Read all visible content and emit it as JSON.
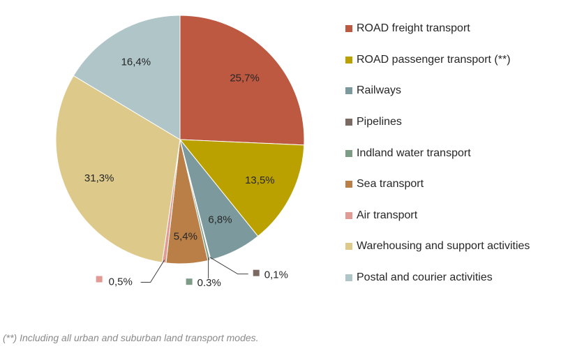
{
  "chart_data": {
    "type": "pie",
    "title": "",
    "categories": [
      "ROAD freight transport",
      "ROAD passenger transport (**)",
      "Railways",
      "Pipelines",
      "Indland water transport",
      "Sea transport",
      "Air transport",
      "Warehousing and support activities",
      "Postal and courier activities"
    ],
    "values": [
      25.7,
      13.5,
      6.8,
      0.1,
      0.3,
      5.4,
      0.5,
      31.3,
      16.4
    ],
    "value_labels": [
      "25,7%",
      "13,5%",
      "6,8%",
      "0,1%",
      "0.3%",
      "5,4%",
      "0,5%",
      "31,3%",
      "16,4%"
    ],
    "colors": [
      "#BD5841",
      "#BBA100",
      "#7C9A9D",
      "#7B6A62",
      "#7D9C86",
      "#BA7F47",
      "#E29A94",
      "#DDC98A",
      "#AFC5C8"
    ],
    "start_angle": "12 o'clock",
    "direction": "clockwise",
    "legend_position": "right"
  },
  "footnote": "(**) Including all urban and suburban land transport modes."
}
